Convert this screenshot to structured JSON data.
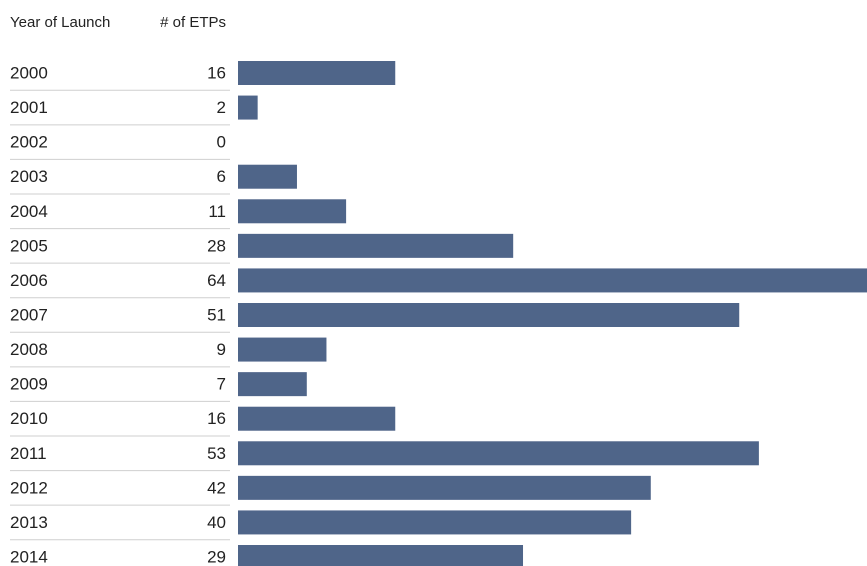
{
  "chart_data": {
    "type": "bar",
    "orientation": "horizontal",
    "columns": [
      "Year of Launch",
      "# of ETPs"
    ],
    "categories": [
      "2000",
      "2001",
      "2002",
      "2003",
      "2004",
      "2005",
      "2006",
      "2007",
      "2008",
      "2009",
      "2010",
      "2011",
      "2012",
      "2013",
      "2014"
    ],
    "values": [
      16,
      2,
      0,
      6,
      11,
      28,
      64,
      51,
      9,
      7,
      16,
      53,
      42,
      40,
      29
    ],
    "color": "#4f6589"
  }
}
